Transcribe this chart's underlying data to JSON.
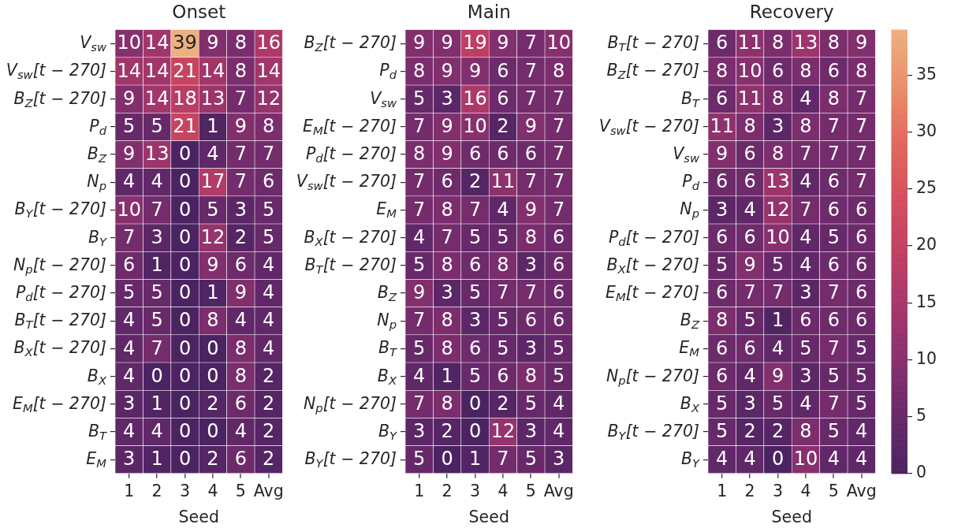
{
  "chart_data": [
    {
      "type": "heatmap",
      "title": "Onset",
      "xlabel": "Seed",
      "categories": [
        "1",
        "2",
        "3",
        "4",
        "5",
        "Avg"
      ],
      "y_categories": [
        "V$_{sw}$",
        "V$_{sw}$[t − 270]",
        "B$_{Z}$[t − 270]",
        "P$_{d}$",
        "B$_{Z}$",
        "N$_{p}$",
        "B$_{Y}$[t − 270]",
        "B$_{Y}$",
        "N$_{p}$[t − 270]",
        "P$_{d}$[t − 270]",
        "B$_{T}$[t − 270]",
        "B$_{X}$[t − 270]",
        "B$_{X}$",
        "E$_{M}$[t − 270]",
        "B$_{T}$",
        "E$_{M}$"
      ],
      "cells": [
        [
          10,
          14,
          39,
          9,
          8,
          16
        ],
        [
          14,
          14,
          21,
          14,
          8,
          14
        ],
        [
          9,
          14,
          18,
          13,
          7,
          12
        ],
        [
          5,
          5,
          21,
          1,
          9,
          8
        ],
        [
          9,
          13,
          0,
          4,
          7,
          7
        ],
        [
          4,
          4,
          0,
          17,
          7,
          6
        ],
        [
          10,
          7,
          0,
          5,
          3,
          5
        ],
        [
          7,
          3,
          0,
          12,
          2,
          5
        ],
        [
          6,
          1,
          0,
          9,
          6,
          4
        ],
        [
          5,
          5,
          0,
          1,
          9,
          4
        ],
        [
          4,
          5,
          0,
          8,
          4,
          4
        ],
        [
          4,
          7,
          0,
          0,
          8,
          4
        ],
        [
          4,
          0,
          0,
          0,
          8,
          2
        ],
        [
          3,
          1,
          0,
          2,
          6,
          2
        ],
        [
          4,
          4,
          0,
          0,
          4,
          2
        ],
        [
          3,
          1,
          0,
          2,
          6,
          2
        ]
      ],
      "data_labels": true
    },
    {
      "type": "heatmap",
      "title": "Main",
      "xlabel": "Seed",
      "categories": [
        "1",
        "2",
        "3",
        "4",
        "5",
        "Avg"
      ],
      "y_categories": [
        "B$_{Z}$[t − 270]",
        "P$_{d}$",
        "V$_{sw}$",
        "E$_{M}$[t − 270]",
        "P$_{d}$[t − 270]",
        "V$_{sw}$[t − 270]",
        "E$_{M}$",
        "B$_{X}$[t − 270]",
        "B$_{T}$[t − 270]",
        "B$_{Z}$",
        "N$_{p}$",
        "B$_{T}$",
        "B$_{X}$",
        "N$_{p}$[t − 270]",
        "B$_{Y}$",
        "B$_{Y}$[t − 270]"
      ],
      "cells": [
        [
          9,
          9,
          19,
          9,
          7,
          10
        ],
        [
          8,
          9,
          9,
          6,
          7,
          8
        ],
        [
          5,
          3,
          16,
          6,
          7,
          7
        ],
        [
          7,
          9,
          10,
          2,
          9,
          7
        ],
        [
          8,
          9,
          6,
          6,
          6,
          7
        ],
        [
          7,
          6,
          2,
          11,
          7,
          7
        ],
        [
          7,
          8,
          7,
          4,
          9,
          7
        ],
        [
          4,
          7,
          5,
          5,
          8,
          6
        ],
        [
          5,
          8,
          6,
          8,
          3,
          6
        ],
        [
          9,
          3,
          5,
          7,
          7,
          6
        ],
        [
          7,
          8,
          3,
          5,
          6,
          6
        ],
        [
          5,
          8,
          6,
          5,
          3,
          5
        ],
        [
          4,
          1,
          5,
          6,
          8,
          5
        ],
        [
          7,
          8,
          0,
          2,
          5,
          4
        ],
        [
          3,
          2,
          0,
          12,
          3,
          4
        ],
        [
          5,
          0,
          1,
          7,
          5,
          3
        ]
      ],
      "data_labels": true
    },
    {
      "type": "heatmap",
      "title": "Recovery",
      "xlabel": "Seed",
      "categories": [
        "1",
        "2",
        "3",
        "4",
        "5",
        "Avg"
      ],
      "y_categories": [
        "B$_{T}$[t − 270]",
        "B$_{Z}$[t − 270]",
        "B$_{T}$",
        "V$_{sw}$[t − 270]",
        "V$_{sw}$",
        "P$_{d}$",
        "N$_{p}$",
        "P$_{d}$[t − 270]",
        "B$_{X}$[t − 270]",
        "E$_{M}$[t − 270]",
        "B$_{Z}$",
        "E$_{M}$",
        "N$_{p}$[t − 270]",
        "B$_{X}$",
        "B$_{Y}$[t − 270]",
        "B$_{Y}$"
      ],
      "cells": [
        [
          6,
          11,
          8,
          13,
          8,
          9
        ],
        [
          8,
          10,
          6,
          8,
          6,
          8
        ],
        [
          6,
          11,
          8,
          4,
          8,
          7
        ],
        [
          11,
          8,
          3,
          8,
          7,
          7
        ],
        [
          9,
          6,
          8,
          7,
          7,
          7
        ],
        [
          6,
          6,
          13,
          4,
          6,
          7
        ],
        [
          3,
          4,
          12,
          7,
          6,
          6
        ],
        [
          6,
          6,
          10,
          4,
          5,
          6
        ],
        [
          5,
          9,
          5,
          4,
          6,
          6
        ],
        [
          6,
          7,
          7,
          3,
          7,
          6
        ],
        [
          8,
          5,
          1,
          6,
          6,
          6
        ],
        [
          6,
          6,
          4,
          5,
          7,
          5
        ],
        [
          6,
          4,
          9,
          3,
          5,
          5
        ],
        [
          5,
          3,
          5,
          4,
          7,
          5
        ],
        [
          5,
          2,
          2,
          8,
          5,
          4
        ],
        [
          4,
          4,
          0,
          10,
          4,
          4
        ]
      ],
      "data_labels": true,
      "clim": [
        0,
        39
      ],
      "cticks": [
        0,
        5,
        10,
        15,
        20,
        25,
        30,
        35
      ]
    }
  ]
}
